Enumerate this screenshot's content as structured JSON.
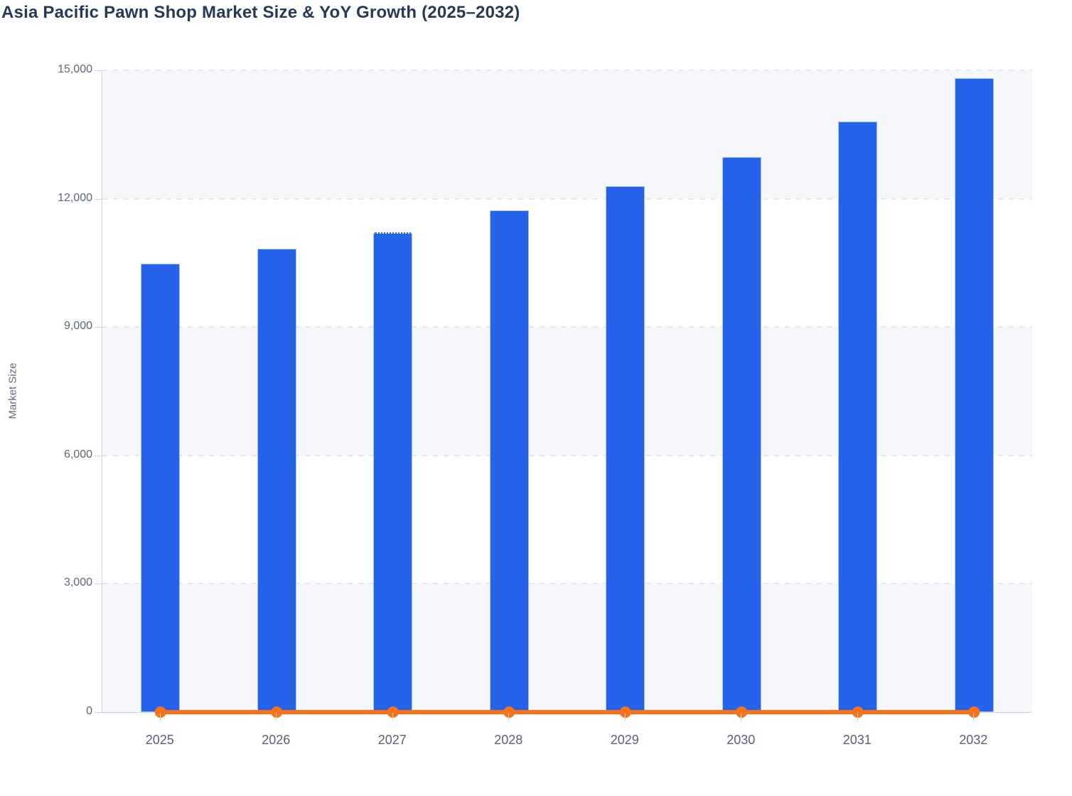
{
  "page": {
    "title": "Asia Pacific Pawn Shop Market Size & YoY Growth (2025–2032)"
  },
  "colors": {
    "bar": "#2563eb",
    "bar_border": "#aac1f0",
    "line": "#f97316",
    "title": "#253a59",
    "axis_line": "#ccd6eb",
    "gridline": "#e3e4e8",
    "band": "#f6f7fa",
    "y_tick_label": "#5b6778",
    "x_tick_label": "#56617a"
  },
  "chart_data": {
    "type": "bar",
    "title": "Asia Pacific Pawn Shop Market Size & YoY Growth (2025–2032)",
    "categories": [
      "2025",
      "2026",
      "2027",
      "2028",
      "2029",
      "2030",
      "2031",
      "2032"
    ],
    "series": [
      {
        "name": "Market Size",
        "type": "bar",
        "color": "#2563eb",
        "values": [
          10490,
          10830,
          11210,
          11730,
          12300,
          12980,
          13810,
          14810
        ]
      },
      {
        "name": "YoY Growth",
        "type": "line",
        "color": "#f97316",
        "values": [
          0,
          0,
          0,
          0,
          0,
          0,
          0,
          0
        ],
        "marker": "circle"
      }
    ],
    "xlabel": "",
    "ylabel": "Market Size",
    "ylim": [
      0,
      15000
    ],
    "yticks": [
      {
        "value": 0,
        "label": "0"
      },
      {
        "value": 3000,
        "label": "3,000"
      },
      {
        "value": 6000,
        "label": "6,000"
      },
      {
        "value": 9000,
        "label": "9,000"
      },
      {
        "value": 12000,
        "label": "12,000"
      },
      {
        "value": 15000,
        "label": "15,000"
      }
    ],
    "legend": "none",
    "grid": "dashed-horizontal",
    "plot_bands": "alternating-gray-white-from-top",
    "line_renders_at_baseline": true,
    "dotted_top_category": "2027"
  }
}
